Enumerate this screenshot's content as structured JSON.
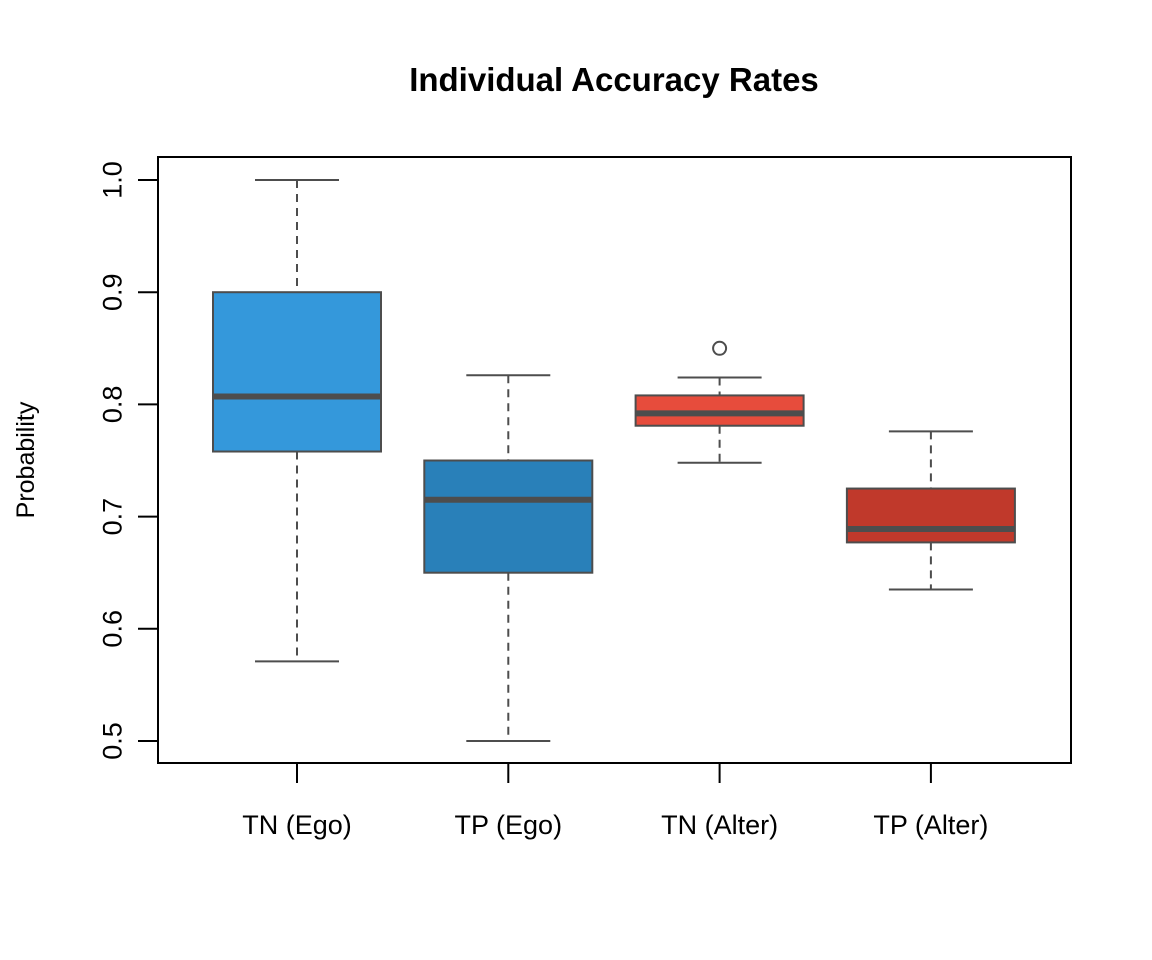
{
  "chart_data": {
    "type": "boxplot",
    "title": "Individual Accuracy Rates",
    "xlabel": "",
    "ylabel": "Probability",
    "ylim": [
      0.48,
      1.02
    ],
    "yticks": [
      0.5,
      0.6,
      0.7,
      0.8,
      0.9,
      1.0
    ],
    "ytick_labels": [
      "0.5",
      "0.6",
      "0.7",
      "0.8",
      "0.9",
      "1.0"
    ],
    "grid": false,
    "legend": null,
    "categories": [
      "TN (Ego)",
      "TP (Ego)",
      "TN (Alter)",
      "TP (Alter)"
    ],
    "boxes": [
      {
        "name": "TN (Ego)",
        "color": "#3498db",
        "whisker_low": 0.571,
        "q1": 0.758,
        "median": 0.807,
        "q3": 0.9,
        "whisker_high": 1.0,
        "outliers": []
      },
      {
        "name": "TP (Ego)",
        "color": "#2980b9",
        "whisker_low": 0.5,
        "q1": 0.65,
        "median": 0.715,
        "q3": 0.75,
        "whisker_high": 0.826,
        "outliers": []
      },
      {
        "name": "TN (Alter)",
        "color": "#e74c3c",
        "whisker_low": 0.748,
        "q1": 0.781,
        "median": 0.792,
        "q3": 0.808,
        "whisker_high": 0.824,
        "outliers": [
          0.85
        ]
      },
      {
        "name": "TP (Alter)",
        "color": "#c0392b",
        "whisker_low": 0.635,
        "q1": 0.677,
        "median": 0.689,
        "q3": 0.725,
        "whisker_high": 0.776,
        "outliers": []
      }
    ],
    "line_color": "#4d4d4d"
  }
}
